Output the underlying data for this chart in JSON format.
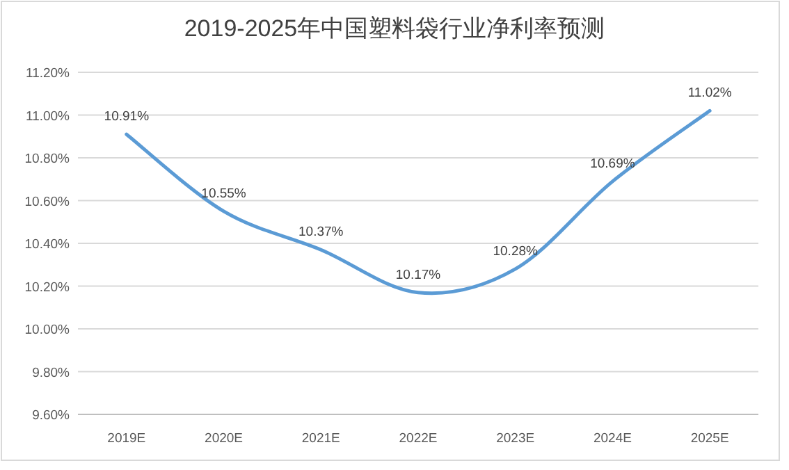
{
  "chart_data": {
    "type": "line",
    "title": "2019-2025年中国塑料袋行业净利率预测",
    "categories": [
      "2019E",
      "2020E",
      "2021E",
      "2022E",
      "2023E",
      "2024E",
      "2025E"
    ],
    "series": [
      {
        "color": "#5b9bd5",
        "values": [
          10.91,
          10.55,
          10.37,
          10.17,
          10.28,
          10.69,
          11.02
        ],
        "value_labels": [
          "10.91%",
          "10.55%",
          "10.37%",
          "10.17%",
          "10.28%",
          "10.69%",
          "11.02%"
        ]
      }
    ],
    "ylim": [
      9.6,
      11.2
    ],
    "yticks": [
      {
        "value": 9.6,
        "label": "9.60%"
      },
      {
        "value": 9.8,
        "label": "9.80%"
      },
      {
        "value": 10.0,
        "label": "10.00%"
      },
      {
        "value": 10.2,
        "label": "10.20%"
      },
      {
        "value": 10.4,
        "label": "10.40%"
      },
      {
        "value": 10.6,
        "label": "10.60%"
      },
      {
        "value": 10.8,
        "label": "10.80%"
      },
      {
        "value": 11.0,
        "label": "11.00%"
      },
      {
        "value": 11.2,
        "label": "11.20%"
      }
    ],
    "grid": "y",
    "marker": "none",
    "line_style": "solid"
  }
}
